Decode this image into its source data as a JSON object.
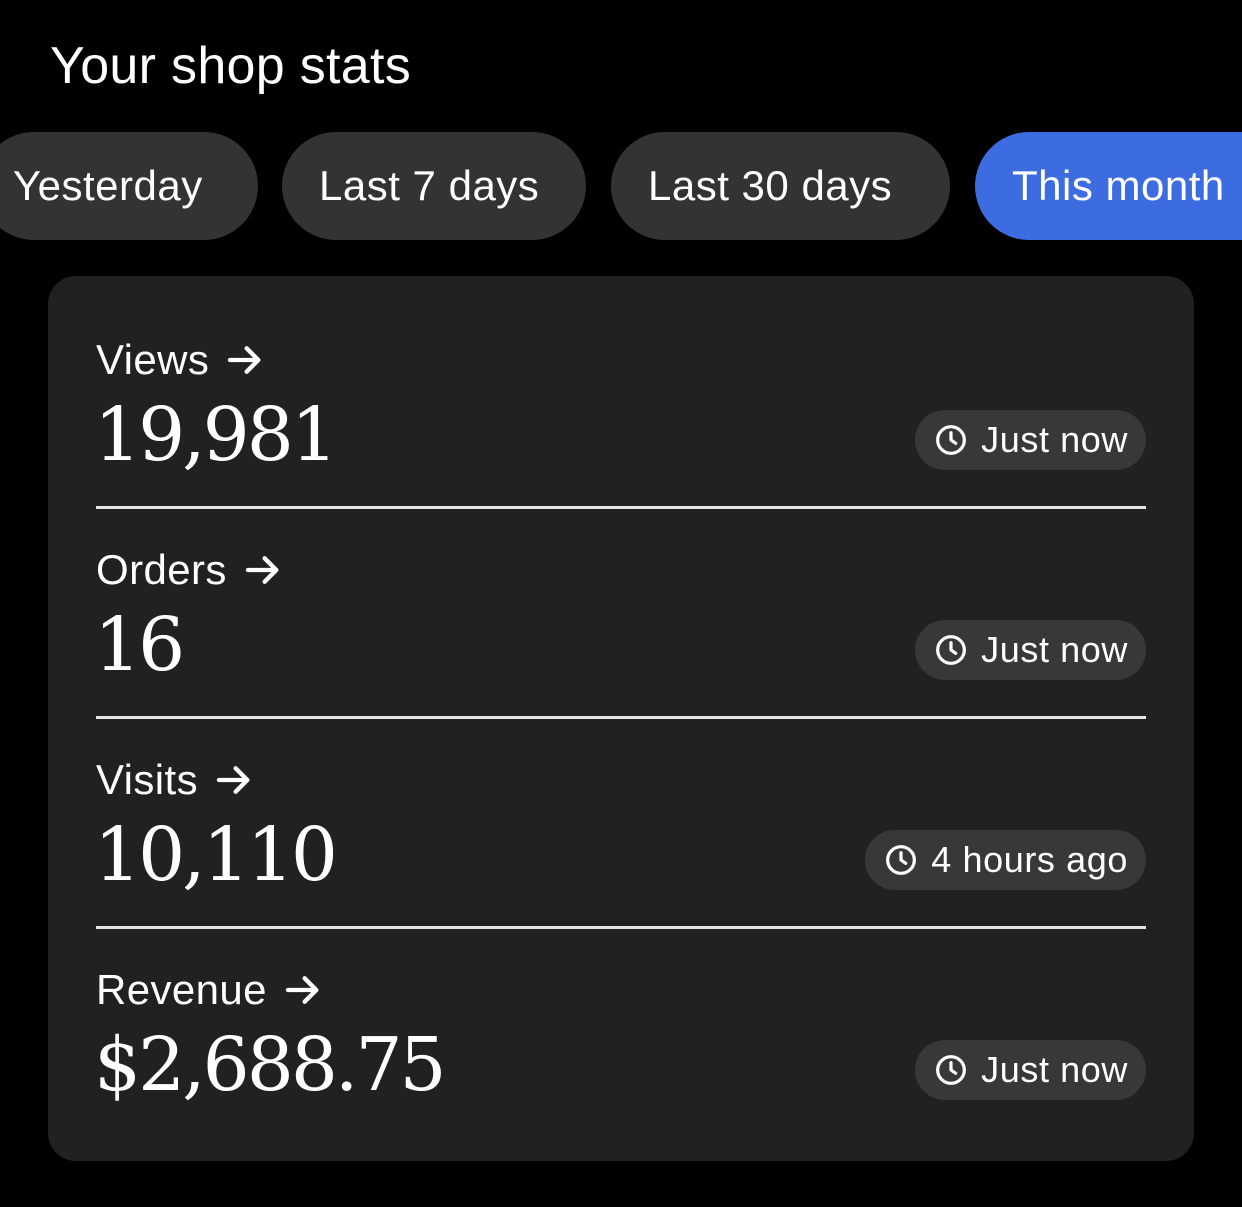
{
  "page": {
    "title": "Your shop stats"
  },
  "filters": [
    {
      "label": "Yesterday",
      "active": false
    },
    {
      "label": "Last 7 days",
      "active": false
    },
    {
      "label": "Last 30 days",
      "active": false
    },
    {
      "label": "This month",
      "active": true
    }
  ],
  "stats": [
    {
      "label": "Views",
      "value": "19,981",
      "updated": "Just now"
    },
    {
      "label": "Orders",
      "value": "16",
      "updated": "Just now"
    },
    {
      "label": "Visits",
      "value": "10,110",
      "updated": "4 hours ago"
    },
    {
      "label": "Revenue",
      "value": "$2,688.75",
      "updated": "Just now"
    }
  ],
  "icons": {
    "label_arrow": "arrow-right-icon",
    "badge_clock": "clock-icon"
  },
  "colors": {
    "background": "#000000",
    "card": "#212121",
    "chip": "#333333",
    "chip_active": "#3d6be0",
    "badge": "#383838",
    "text": "#ffffff"
  }
}
